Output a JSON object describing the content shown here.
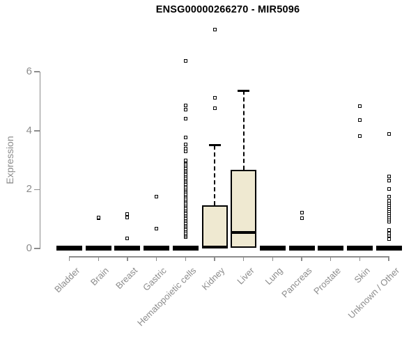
{
  "chart_data": {
    "type": "boxplot",
    "title": "ENSG00000266270 - MIR5096",
    "ylabel": "Expression",
    "xlabel": "",
    "ylim": [
      0,
      7.6
    ],
    "yticks": [
      0,
      2,
      4,
      6
    ],
    "grid": false,
    "legend": null,
    "colors": {
      "box_fill": "#efe9d1",
      "box_border": "#000000",
      "axis": "#8c8c8c",
      "tick_label": "#8c8c8c",
      "title": "#000000"
    },
    "categories": [
      "Bladder",
      "Brain",
      "Breast",
      "Gastric",
      "Hematopoietic cells",
      "Kidney",
      "Liver",
      "Lung",
      "Pancreas",
      "Prostate",
      "Skin",
      "Unknown / Other"
    ],
    "boxes": [
      {
        "category": "Bladder",
        "q1": 0,
        "median": 0,
        "q3": 0,
        "whisker_low": 0,
        "whisker_high": 0,
        "outliers": []
      },
      {
        "category": "Brain",
        "q1": 0,
        "median": 0,
        "q3": 0,
        "whisker_low": 0,
        "whisker_high": 0,
        "outliers": [
          1.03,
          1.06
        ]
      },
      {
        "category": "Breast",
        "q1": 0,
        "median": 0,
        "q3": 0,
        "whisker_low": 0,
        "whisker_high": 0,
        "outliers": [
          0.35,
          1.06,
          1.18
        ]
      },
      {
        "category": "Gastric",
        "q1": 0,
        "median": 0,
        "q3": 0,
        "whisker_low": 0,
        "whisker_high": 0,
        "outliers": [
          0.68,
          1.77
        ]
      },
      {
        "category": "Hematopoietic cells",
        "q1": 0,
        "median": 0,
        "q3": 0,
        "whisker_low": 0,
        "whisker_high": 0,
        "outliers": [
          0.38,
          0.43,
          0.49,
          0.54,
          0.6,
          0.65,
          0.71,
          0.76,
          0.82,
          0.87,
          0.93,
          0.98,
          1.04,
          1.09,
          1.15,
          1.2,
          1.26,
          1.31,
          1.37,
          1.42,
          1.48,
          1.53,
          1.59,
          1.64,
          1.7,
          1.75,
          1.81,
          1.86,
          1.92,
          1.97,
          2.03,
          2.08,
          2.14,
          2.19,
          2.25,
          2.3,
          2.36,
          2.41,
          2.47,
          2.52,
          2.58,
          2.63,
          2.69,
          2.74,
          2.8,
          2.85,
          2.91,
          2.96,
          3.0,
          3.29,
          3.4,
          3.53,
          3.78,
          4.42,
          4.72,
          4.85,
          6.37
        ]
      },
      {
        "category": "Kidney",
        "q1": 0,
        "median": 0.05,
        "q3": 1.47,
        "whisker_low": 0,
        "whisker_high": 3.51,
        "outliers": [
          4.76,
          5.12,
          7.44
        ]
      },
      {
        "category": "Liver",
        "q1": 0.03,
        "median": 0.55,
        "q3": 2.68,
        "whisker_low": 0.03,
        "whisker_high": 5.36,
        "outliers": []
      },
      {
        "category": "Lung",
        "q1": 0,
        "median": 0,
        "q3": 0,
        "whisker_low": 0,
        "whisker_high": 0,
        "outliers": []
      },
      {
        "category": "Pancreas",
        "q1": 0,
        "median": 0,
        "q3": 0,
        "whisker_low": 0,
        "whisker_high": 0,
        "outliers": [
          1.04,
          1.21
        ]
      },
      {
        "category": "Prostate",
        "q1": 0,
        "median": 0,
        "q3": 0,
        "whisker_low": 0,
        "whisker_high": 0,
        "outliers": []
      },
      {
        "category": "Skin",
        "q1": 0,
        "median": 0,
        "q3": 0,
        "whisker_low": 0,
        "whisker_high": 0,
        "outliers": [
          3.81,
          4.35,
          4.84
        ]
      },
      {
        "category": "Unknown / Other",
        "q1": 0,
        "median": 0,
        "q3": 0,
        "whisker_low": 0,
        "whisker_high": 0,
        "outliers": [
          0.33,
          0.44,
          0.52,
          0.62,
          0.92,
          0.99,
          1.06,
          1.13,
          1.2,
          1.27,
          1.34,
          1.41,
          1.48,
          1.55,
          1.62,
          1.75,
          2.01,
          2.3,
          2.44,
          3.88
        ]
      }
    ]
  }
}
